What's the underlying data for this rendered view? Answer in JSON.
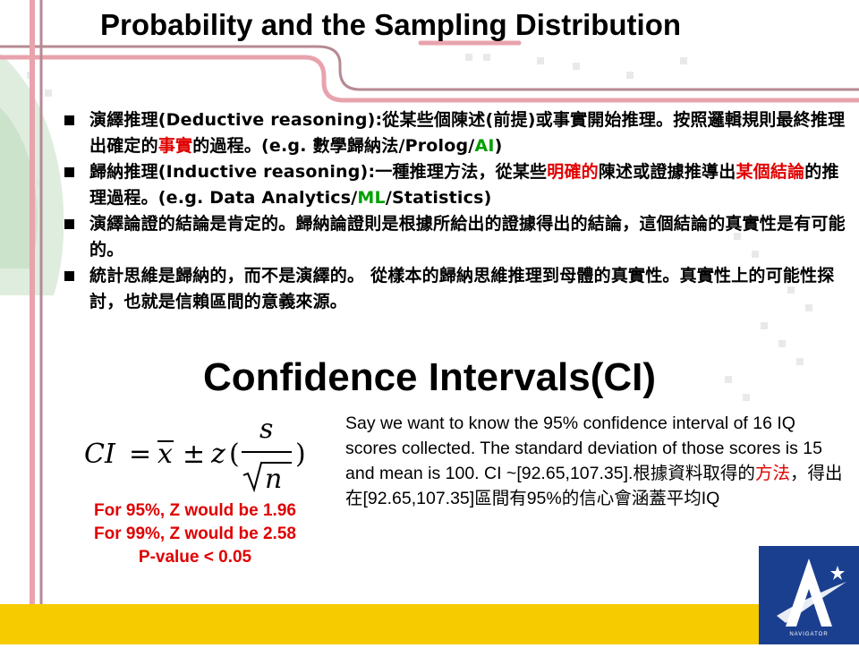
{
  "slide": {
    "title": "Probability and the Sampling Distribution",
    "bullets": [
      {
        "parts": [
          {
            "text": "演繹推理(Deductive reasoning):從某些個陳述(前提)或事實開始推理。按照邏輯規則最終推理出確定的",
            "color": "black"
          },
          {
            "text": "事實",
            "color": "red"
          },
          {
            "text": "的過程。(e.g. 數學歸納法/Prolog/",
            "color": "black"
          },
          {
            "text": "AI",
            "color": "green"
          },
          {
            "text": ")",
            "color": "black"
          }
        ]
      },
      {
        "parts": [
          {
            "text": "歸納推理(Inductive reasoning):一種推理方法，從某些",
            "color": "black"
          },
          {
            "text": "明確的",
            "color": "red"
          },
          {
            "text": "陳述或證據推導出",
            "color": "black"
          },
          {
            "text": "某個結論",
            "color": "red"
          },
          {
            "text": "的推理過程。(e.g. Data Analytics/",
            "color": "black"
          },
          {
            "text": "ML",
            "color": "green"
          },
          {
            "text": "/Statistics)",
            "color": "black"
          }
        ]
      },
      {
        "parts": [
          {
            "text": "演繹論證的結論是肯定的。歸納論證則是根據所給出的證據得出的結論，這個結論的真實性是有可能的。",
            "color": "black"
          }
        ]
      },
      {
        "parts": [
          {
            "text": "統計思維是歸納的，而不是演繹的。 從樣本的歸納思維推理到母體的真實性。真實性上的可能性探討，也就是信賴區間的意義來源。",
            "color": "black"
          }
        ]
      }
    ],
    "ci_heading": "Confidence Intervals(CI)",
    "formula": {
      "lhs": "CI",
      "equals": "=",
      "xbar": "x",
      "pm": "±",
      "z": "z",
      "open_paren": "(",
      "numerator": "s",
      "denominator": "n",
      "close_paren": ")"
    },
    "z_lines": [
      "For 95%,  Z would be 1.96",
      "For 99%,  Z would be 2.58",
      "P-value < 0.05"
    ],
    "example": {
      "part1": "Say we want to know the 95% confidence interval of 16 IQ scores collected. The standard deviation of those scores is 15 and mean is 100. CI ~[92.65,107.35].根據資料取得的",
      "highlight": "方法",
      "part2": "，得出在[92.65,107.35]區間有95%的信心會涵蓋平均IQ"
    },
    "logo": {
      "text": "NAVIGATOR",
      "icon": "star-a-logo-icon"
    },
    "colors": {
      "red": "#e00000",
      "green": "#00a000",
      "yellow_band": "#f6cb00",
      "logo_blue": "#1b3f8f",
      "decor_pink": "#e8a3ad",
      "decor_mauve": "#b58a93"
    }
  }
}
